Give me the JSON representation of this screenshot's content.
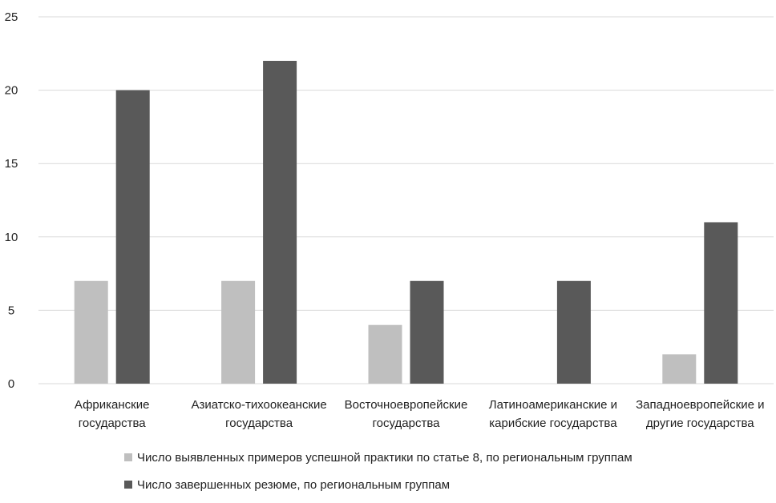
{
  "chart_data": {
    "type": "bar",
    "categories": [
      [
        "Африканские",
        "государства"
      ],
      [
        "Азиатско-тихоокеанские",
        "государства"
      ],
      [
        "Восточноевропейские",
        "государства"
      ],
      [
        "Латиноамериканские и",
        "карибские государства"
      ],
      [
        "Западноевропейские и",
        "другие государства"
      ]
    ],
    "series": [
      {
        "name": "Число выявленных примеров успешной практики по статье 8, по региональным группам",
        "values": [
          7,
          7,
          4,
          0,
          2
        ],
        "color": "#bfbfbf"
      },
      {
        "name": "Число завершенных резюме, по региональным группам",
        "values": [
          20,
          22,
          7,
          7,
          11
        ],
        "color": "#595959"
      }
    ],
    "ylim": [
      0,
      25
    ],
    "yticks": [
      "0",
      "5",
      "10",
      "15",
      "20",
      "25"
    ],
    "grid": true,
    "legend_position": "bottom",
    "gridline_color": "#d9d9d9"
  }
}
